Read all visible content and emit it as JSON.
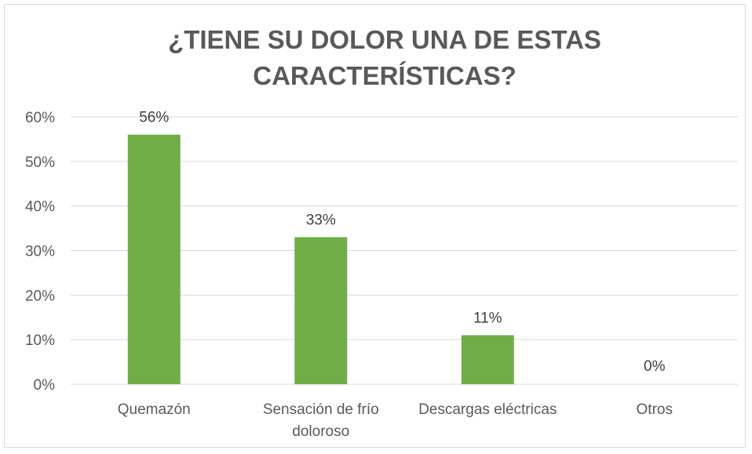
{
  "chart_data": {
    "type": "bar",
    "title_lines": [
      "¿TIENE SU DOLOR UNA DE ESTAS",
      "CARACTERÍSTICAS?"
    ],
    "categories": [
      [
        "Quemazón"
      ],
      [
        "Sensación de frío",
        "doloroso"
      ],
      [
        "Descargas eléctricas"
      ],
      [
        "Otros"
      ]
    ],
    "values": [
      0.56,
      0.33,
      0.11,
      0.0
    ],
    "data_labels": [
      "56%",
      "33%",
      "11%",
      "0%"
    ],
    "y_ticks": [
      {
        "value": 0.0,
        "label": "0%"
      },
      {
        "value": 0.1,
        "label": "10%"
      },
      {
        "value": 0.2,
        "label": "20%"
      },
      {
        "value": 0.3,
        "label": "30%"
      },
      {
        "value": 0.4,
        "label": "40%"
      },
      {
        "value": 0.5,
        "label": "50%"
      },
      {
        "value": 0.6,
        "label": "60%"
      }
    ],
    "ylim": [
      0,
      0.6
    ],
    "grid": true,
    "legend": "none",
    "bar_color": "#70ad47",
    "grid_color": "#d9d9d9",
    "text_color": "#595959"
  }
}
